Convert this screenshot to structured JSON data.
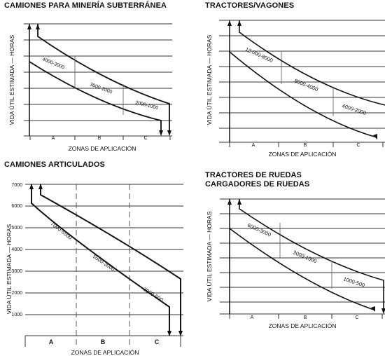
{
  "charts": [
    {
      "title_lines": [
        "CAMIONES PARA MINERÍA SUBTERRÁNEA"
      ],
      "ylabel": "VIDA ÚTIL ESTIMADA — HORAS",
      "xlabel": "ZONAS DE APLICACIÓN",
      "zones": [
        "A",
        "B",
        "C"
      ],
      "ranges": [
        "4000-3000",
        "3000-2000",
        "2000-1000"
      ],
      "yticks": []
    },
    {
      "title_lines": [
        "TRACTORES/VAGONES"
      ],
      "ylabel": "VIDA ÚTIL ESTIMADA — HORAS",
      "xlabel": "ZONAS DE APLICACIÓN",
      "zones": [
        "A",
        "B",
        "C"
      ],
      "ranges": [
        "12.000-8000",
        "8000-4000",
        "4000-2000"
      ],
      "yticks": []
    },
    {
      "title_lines": [
        "CAMIONES ARTICULADOS"
      ],
      "ylabel": "VIDA ÚTIL ESTIMADA — HORAS",
      "xlabel": "ZONAS DE APLICACIÓN",
      "zones": [
        "A",
        "B",
        "C"
      ],
      "ranges": [
        "7000-5500",
        "5500-3000",
        "3000-500"
      ],
      "yticks": [
        "1000",
        "2000",
        "3000",
        "4000",
        "5000",
        "6000",
        "7000"
      ]
    },
    {
      "title_lines": [
        "TRACTORES DE RUEDAS",
        "CARGADORES DE RUEDAS"
      ],
      "ylabel": "VIDA ÚTIL ESTIMADA — HORAS",
      "xlabel": "ZONAS DE APLICACIÓN",
      "zones": [
        "A",
        "B",
        "C"
      ],
      "ranges": [
        "6000-3000",
        "3000-1000",
        "1000-500"
      ],
      "yticks": []
    }
  ],
  "chart_data": [
    {
      "type": "line",
      "title": "CAMIONES PARA MINERÍA SUBTERRÁNEA",
      "xlabel": "ZONAS DE APLICACIÓN",
      "ylabel": "VIDA ÚTIL ESTIMADA — HORAS",
      "categories": [
        "A",
        "B",
        "C"
      ],
      "ranges_hours": [
        [
          4000,
          3000
        ],
        [
          3000,
          2000
        ],
        [
          2000,
          1000
        ]
      ]
    },
    {
      "type": "line",
      "title": "TRACTORES/VAGONES",
      "xlabel": "ZONAS DE APLICACIÓN",
      "ylabel": "VIDA ÚTIL ESTIMADA — HORAS",
      "categories": [
        "A",
        "B",
        "C"
      ],
      "ranges_hours": [
        [
          12000,
          8000
        ],
        [
          8000,
          4000
        ],
        [
          4000,
          2000
        ]
      ]
    },
    {
      "type": "line",
      "title": "CAMIONES ARTICULADOS",
      "xlabel": "ZONAS DE APLICACIÓN",
      "ylabel": "VIDA ÚTIL ESTIMADA — HORAS",
      "categories": [
        "A",
        "B",
        "C"
      ],
      "ylim": [
        0,
        7000
      ],
      "ranges_hours": [
        [
          7000,
          5500
        ],
        [
          5500,
          3000
        ],
        [
          3000,
          500
        ]
      ]
    },
    {
      "type": "line",
      "title": "TRACTORES DE RUEDAS / CARGADORES DE RUEDAS",
      "xlabel": "ZONAS DE APLICACIÓN",
      "ylabel": "VIDA ÚTIL ESTIMADA — HORAS",
      "categories": [
        "A",
        "B",
        "C"
      ],
      "ranges_hours": [
        [
          6000,
          3000
        ],
        [
          3000,
          1000
        ],
        [
          1000,
          500
        ]
      ]
    }
  ]
}
